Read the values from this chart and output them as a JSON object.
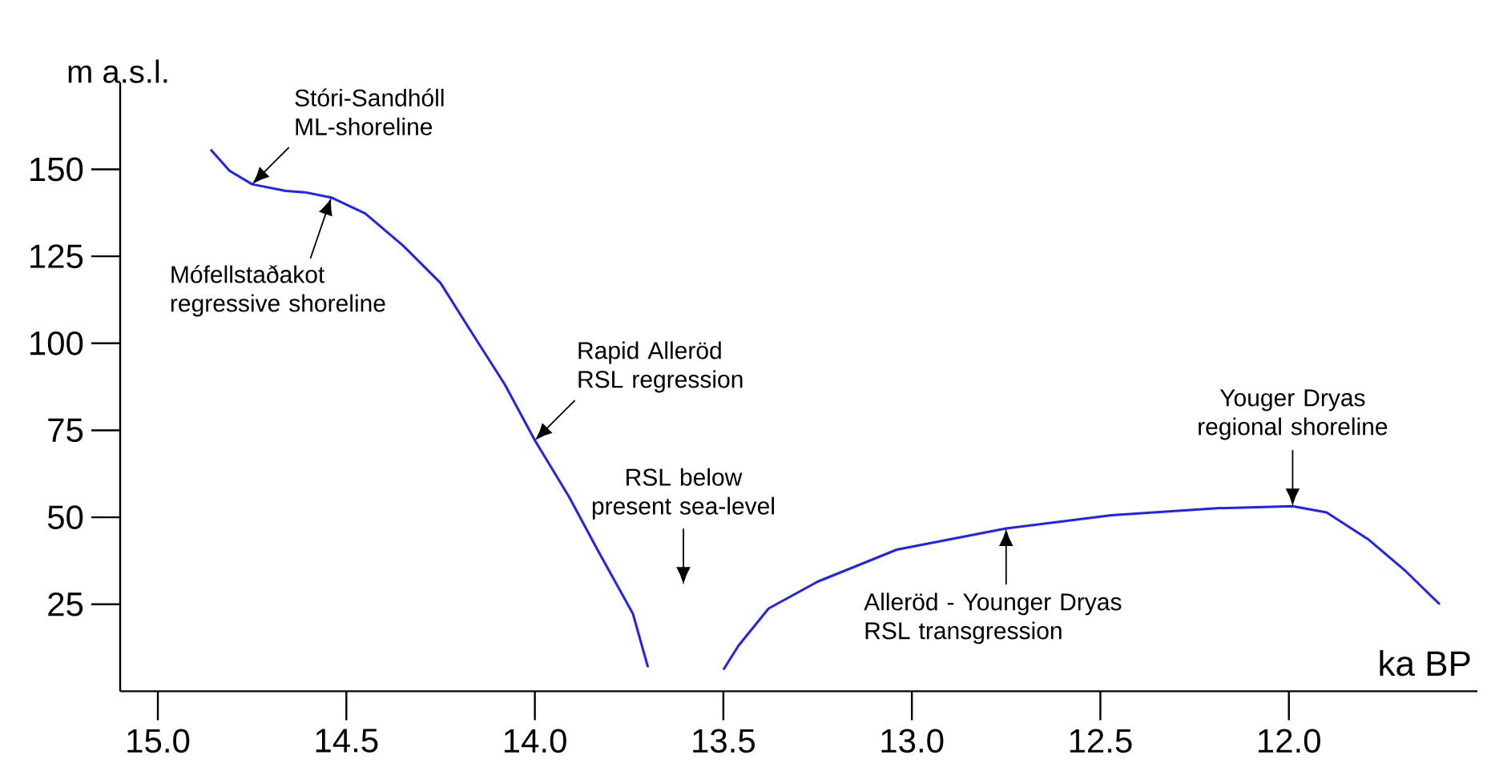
{
  "chart_data": {
    "type": "line",
    "xlabel": "ka BP",
    "ylabel": "m a.s.l.",
    "xlim": [
      15.1,
      11.5
    ],
    "ylim": [
      0,
      175
    ],
    "xticks": [
      {
        "value": 15,
        "label": "15.0"
      },
      {
        "value": 14.5,
        "label": "14.5"
      },
      {
        "value": 14,
        "label": "14.0"
      },
      {
        "value": 13.5,
        "label": "13.5"
      },
      {
        "value": 13,
        "label": "13.0"
      },
      {
        "value": 12.5,
        "label": "12.5"
      },
      {
        "value": 12,
        "label": "12.0"
      }
    ],
    "yticks": [
      25,
      50,
      75,
      100,
      125,
      150
    ],
    "series": [
      {
        "color": "#2020ff",
        "x": [
          14.86,
          14.81,
          14.75,
          14.66,
          14.61,
          14.54,
          14.45,
          14.35,
          14.25,
          14.17,
          14.08,
          14.0,
          13.91,
          13.83,
          13.74,
          13.7
        ],
        "values": [
          155.7,
          149.6,
          145.7,
          143.8,
          143.4,
          141.9,
          137.3,
          128.1,
          117.3,
          103.5,
          88.2,
          72.1,
          56.0,
          39.9,
          22.3,
          6.9
        ]
      },
      {
        "color": "#2020ff",
        "x": [
          13.5,
          13.46,
          13.38,
          13.25,
          13.04,
          12.75,
          12.47,
          12.19,
          11.99,
          11.9,
          11.79,
          11.69,
          11.6
        ],
        "values": [
          6.2,
          13.1,
          23.8,
          31.5,
          40.7,
          46.8,
          50.6,
          52.6,
          53.2,
          51.4,
          43.7,
          34.5,
          25.0
        ]
      }
    ],
    "annotations": [
      {
        "text": "Stóri-Sandhóll ML-shoreline",
        "x": 14.75,
        "y": 145.7
      },
      {
        "text": "Mófellstaðakot regressive shoreline",
        "x": 14.54,
        "y": 141.9
      },
      {
        "text": "Rapid Alleröd RSL regression",
        "x": 14.0,
        "y": 72.1
      },
      "RSL below present sea-level",
      {
        "text": "Alleröd - Younger Dryas RSL transgression",
        "x": 12.75,
        "y": 46.8
      },
      {
        "text": "Youger Dryas regional shoreline",
        "x": 11.99,
        "y": 53.2
      }
    ]
  }
}
